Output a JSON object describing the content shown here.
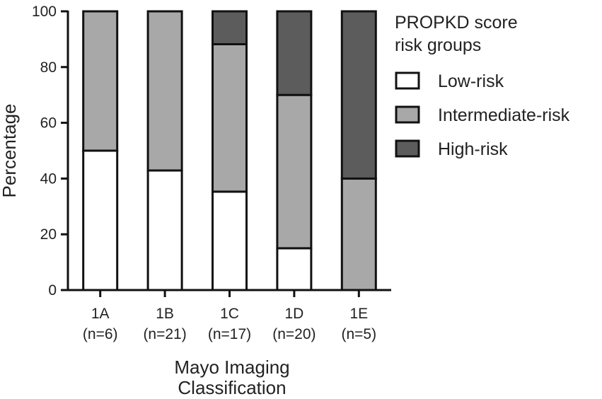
{
  "chart_data": {
    "type": "bar",
    "stacked": true,
    "categories": [
      "1A",
      "1B",
      "1C",
      "1D",
      "1E"
    ],
    "category_sublabels": [
      "(n=6)",
      "(n=21)",
      "(n=17)",
      "(n=20)",
      "(n=5)"
    ],
    "series": [
      {
        "name": "Low-risk",
        "values": [
          50,
          42.9,
          35.3,
          15,
          0
        ],
        "color": "#ffffff"
      },
      {
        "name": "Intermediate-risk",
        "values": [
          50,
          57.1,
          52.9,
          55,
          40
        ],
        "color": "#a8a8a8"
      },
      {
        "name": "High-risk",
        "values": [
          0,
          0,
          11.8,
          30,
          60
        ],
        "color": "#5c5c5c"
      }
    ],
    "xlabel": [
      "Mayo Imaging",
      "Classification"
    ],
    "ylabel": "Percentage",
    "ylim": [
      0,
      100
    ],
    "yticks": [
      "0",
      "20",
      "40",
      "60",
      "80",
      "100"
    ],
    "legend": {
      "title": [
        "PROPKD score",
        "risk groups"
      ],
      "position": "top-right"
    },
    "grid": false
  }
}
